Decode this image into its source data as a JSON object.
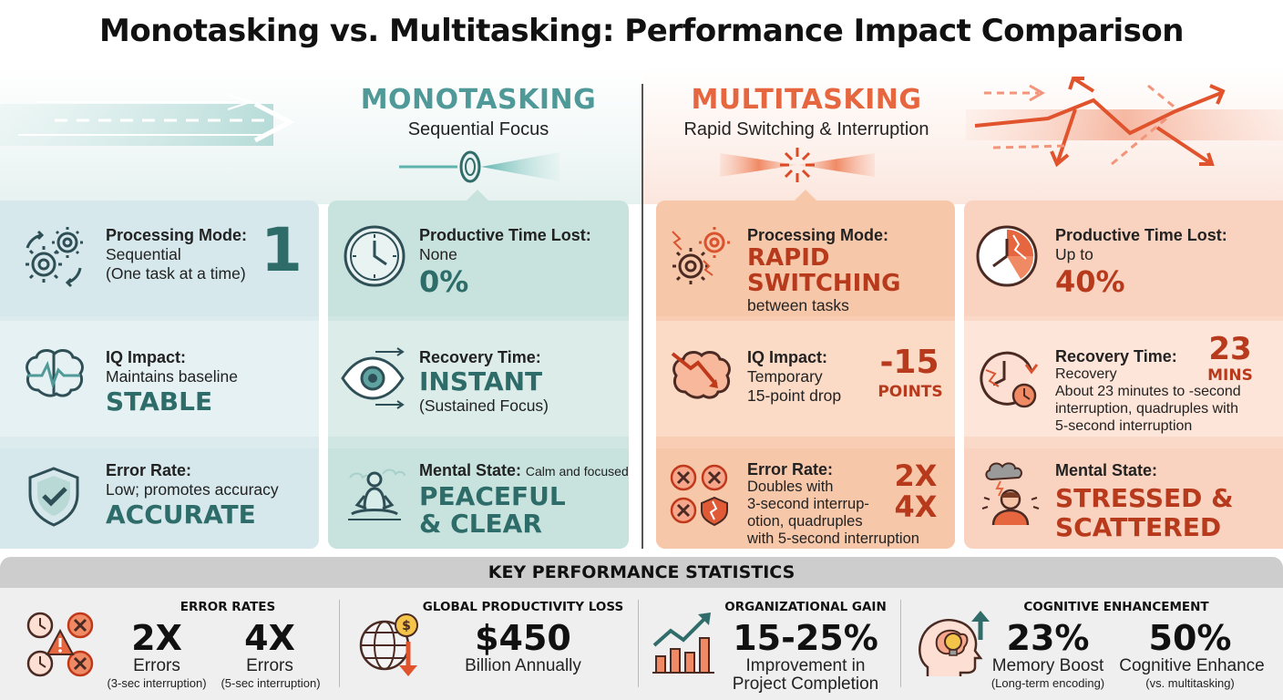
{
  "title": "Monotasking vs. Multitasking: Performance Impact Comparison",
  "monotasking": {
    "heading": "MONOTASKING",
    "subheading": "Sequential Focus",
    "processing": {
      "label": "Processing Mode:",
      "value": "Sequential",
      "detail": "(One task at a time)",
      "big": "1"
    },
    "iq": {
      "label": "IQ Impact:",
      "value": "Maintains baseline",
      "big": "STABLE"
    },
    "error": {
      "label": "Error Rate:",
      "value": "Low; promotes accuracy",
      "big": "ACCURATE"
    },
    "time_lost": {
      "label": "Productive Time Lost:",
      "value": "None",
      "big": "0%"
    },
    "recovery": {
      "label": "Recovery Time:",
      "big": "INSTANT",
      "detail": "(Sustained Focus)"
    },
    "mental": {
      "label": "Mental State:",
      "value": "Calm and focused",
      "big1": "PEACEFUL",
      "big2": "& CLEAR"
    }
  },
  "multitasking": {
    "heading": "MULTITASKING",
    "subheading": "Rapid Switching & Interruption",
    "processing": {
      "label": "Processing Mode:",
      "big1": "RAPID",
      "big2": "SWITCHING",
      "detail": "between tasks"
    },
    "iq": {
      "label": "IQ Impact:",
      "value": "Temporary",
      "detail": "15-point drop",
      "big": "-15",
      "unit": "POINTS"
    },
    "error": {
      "label": "Error Rate:",
      "line1": "Doubles with",
      "line2": "3-second interrup-",
      "line3": "otion, quadruples",
      "line4": "with 5-second interruption",
      "big1": "2X",
      "big2": "4X"
    },
    "time_lost": {
      "label": "Productive Time Lost:",
      "value": "Up to",
      "big": "40%"
    },
    "recovery": {
      "label": "Recovery Time:",
      "value": "Recovery",
      "big": "23",
      "unit": "MINS",
      "line1": "About 23 minutes to -second",
      "line2": "interruption, quadruples with",
      "line3": "5-second interruption"
    },
    "mental": {
      "label": "Mental State:",
      "big1": "STRESSED &",
      "big2": "SCATTERED"
    }
  },
  "stats": {
    "heading": "KEY PERFORMANCE STATISTICS",
    "error_rates": {
      "title": "ERROR RATES",
      "a_big": "2X",
      "a_line": "Errors",
      "a_small": "(3-sec interruption)",
      "b_big": "4X",
      "b_line": "Errors",
      "b_small": "(5-sec interruption)"
    },
    "productivity": {
      "title": "GLOBAL PRODUCTIVITY LOSS",
      "big": "$450",
      "line": "Billion Annually"
    },
    "organizational": {
      "title": "ORGANIZATIONAL GAIN",
      "big": "15-25%",
      "line1": "Improvement in",
      "line2": "Project Completion"
    },
    "cognitive": {
      "title": "COGNITIVE ENHANCEMENT",
      "a_big": "23%",
      "a_line": "Memory Boost",
      "a_small": "(Long-term encoding)",
      "b_big": "50%",
      "b_line": "Cognitive Enhance",
      "b_small": "(vs. multitasking)"
    }
  },
  "colors": {
    "teal": "#4f9a98",
    "teal_dark": "#2e6c6a",
    "orange": "#e5663f",
    "red_dark": "#b83a1d"
  },
  "icons": [
    "gears-icon",
    "brain-icon",
    "shield-check-icon",
    "clock-icon",
    "eye-icon",
    "meditation-icon",
    "broken-gears-icon",
    "brain-drop-icon",
    "error-x-icon",
    "clock-fractured-icon",
    "clock-recovery-icon",
    "stressed-person-icon",
    "clock-warning-icon",
    "globe-dollar-icon",
    "growth-chart-icon",
    "head-bulb-icon"
  ]
}
